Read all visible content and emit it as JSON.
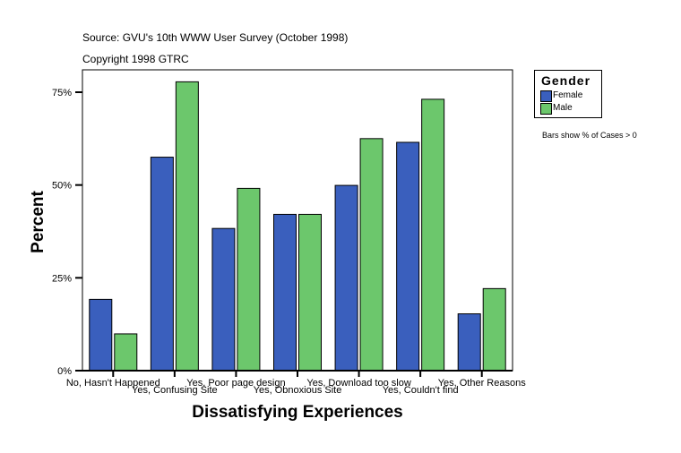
{
  "chart_data": {
    "type": "bar",
    "source": "Source: GVU's 10th WWW User Survey (October 1998)",
    "copyright": "Copyright 1998 GTRC",
    "xlabel": "Dissatisfying Experiences",
    "ylabel": "Percent",
    "ylim": [
      0,
      81
    ],
    "yticks": [
      0,
      25,
      50,
      75
    ],
    "ytick_labels": [
      "0%",
      "25%",
      "50%",
      "75%"
    ],
    "categories": [
      "No, Hasn't Happened",
      "Yes, Confusing Site",
      "Yes, Poor page design",
      "Yes, Obnoxious Site",
      "Yes, Download too slow",
      "Yes, Couldn't find",
      "Yes, Other Reasons"
    ],
    "legend_title": "Gender",
    "legend_placement": "top-right",
    "note": "Bars show % of Cases > 0",
    "series": [
      {
        "name": "Female",
        "color": "#3a5fbd",
        "values": [
          19.2,
          57.5,
          38.3,
          42.1,
          49.9,
          61.5,
          15.3
        ]
      },
      {
        "name": "Male",
        "color": "#6cc76c",
        "values": [
          9.9,
          77.8,
          49.1,
          42.1,
          62.5,
          73.1,
          22.1
        ]
      }
    ]
  }
}
